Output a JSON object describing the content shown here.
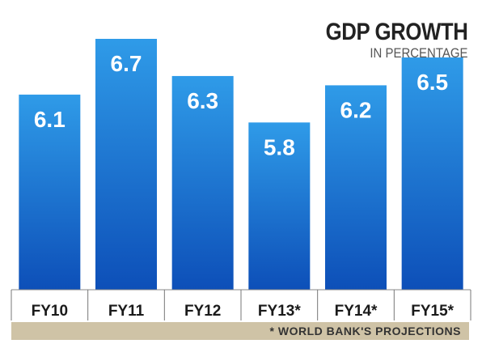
{
  "chart_data": {
    "type": "bar",
    "title": "GDP GROWTH",
    "subtitle": "IN PERCENTAGE",
    "categories": [
      "FY10",
      "FY11",
      "FY12",
      "FY13*",
      "FY14*",
      "FY15*"
    ],
    "values": [
      6.1,
      6.7,
      6.3,
      5.8,
      6.2,
      6.5
    ],
    "data_labels": [
      "6.1",
      "6.7",
      "6.3",
      "5.8",
      "6.2",
      "6.5"
    ],
    "footnote": "* WORLD BANK'S PROJECTIONS",
    "colors": {
      "bar_top": "#2f9be8",
      "bar_bottom": "#0d4fb8",
      "label": "#ffffff",
      "footnote_band": "#cfc3a6"
    }
  }
}
